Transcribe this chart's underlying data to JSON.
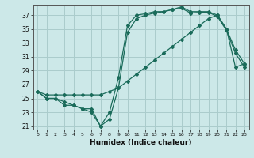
{
  "xlabel": "Humidex (Indice chaleur)",
  "background_color": "#cce8e8",
  "grid_color": "#aacccc",
  "line_color": "#1a6b5a",
  "xlim": [
    -0.5,
    23.5
  ],
  "ylim": [
    20.5,
    38.5
  ],
  "xticks": [
    0,
    1,
    2,
    3,
    4,
    5,
    6,
    7,
    8,
    9,
    10,
    11,
    12,
    13,
    14,
    15,
    16,
    17,
    18,
    19,
    20,
    21,
    22,
    23
  ],
  "yticks": [
    21,
    23,
    25,
    27,
    29,
    31,
    33,
    35,
    37
  ],
  "line1_x": [
    0,
    1,
    2,
    3,
    4,
    5,
    6,
    7,
    8,
    9,
    10,
    11,
    12,
    13,
    14,
    15,
    16,
    17,
    18,
    19,
    20,
    21,
    22,
    23
  ],
  "line1_y": [
    26,
    25,
    25,
    24,
    24,
    23.5,
    23.5,
    21,
    23,
    28,
    35.5,
    37,
    37.2,
    37.5,
    37.5,
    37.8,
    38.2,
    37.5,
    37.5,
    37.5,
    37,
    35,
    32,
    30
  ],
  "line2_x": [
    0,
    1,
    2,
    3,
    4,
    5,
    6,
    7,
    8,
    9,
    10,
    11,
    12,
    13,
    14,
    15,
    16,
    17,
    18,
    19,
    20,
    21,
    22,
    23
  ],
  "line2_y": [
    26,
    25.5,
    25.5,
    25.5,
    25.5,
    25.5,
    25.5,
    25.5,
    26,
    26.5,
    27.5,
    28.5,
    29.5,
    30.5,
    31.5,
    32.5,
    33.5,
    34.5,
    35.5,
    36.5,
    37,
    35,
    29.5,
    30
  ],
  "line3_x": [
    0,
    1,
    2,
    3,
    4,
    5,
    6,
    7,
    8,
    9,
    10,
    11,
    12,
    13,
    14,
    15,
    16,
    17,
    18,
    19,
    20,
    21,
    22,
    23
  ],
  "line3_y": [
    26,
    25,
    25,
    24.5,
    24,
    23.5,
    23,
    21,
    22,
    26.5,
    34.5,
    36.5,
    37,
    37.3,
    37.5,
    37.8,
    38,
    37.3,
    37.4,
    37.4,
    36.8,
    34.8,
    31.5,
    29.5
  ]
}
